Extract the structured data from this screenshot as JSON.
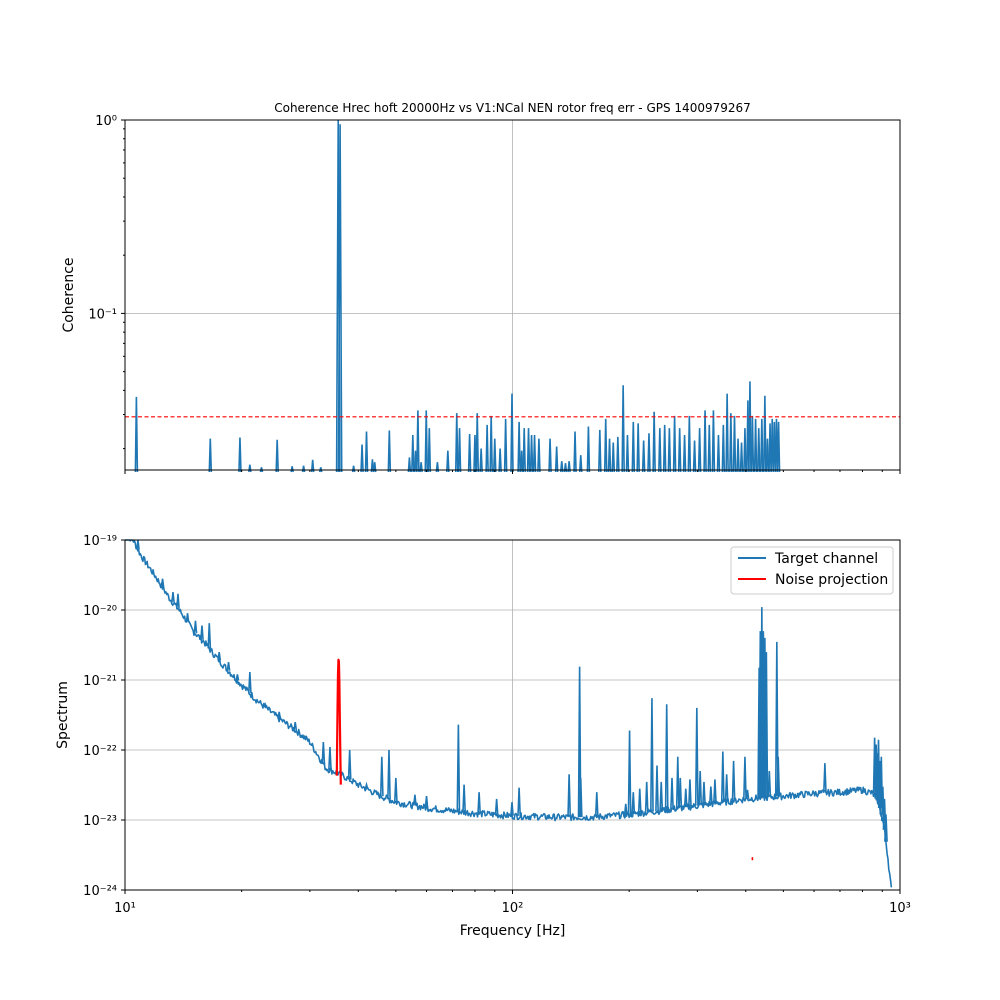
{
  "chart_data": [
    {
      "type": "line",
      "title": "Coherence Hrec hoft 20000Hz vs V1:NCal NEN rotor freq err - GPS 1400979267",
      "xlabel": "",
      "ylabel": "Coherence",
      "xscale": "log",
      "yscale": "log",
      "xlim": [
        10,
        1000
      ],
      "ylim": [
        0.0155,
        1
      ],
      "grid": true,
      "x_tick_labels": [
        "10¹",
        "10²",
        "10³"
      ],
      "y_tick_labels": [
        "10⁻¹",
        "10⁰"
      ],
      "threshold": {
        "value": 0.0292,
        "color": "#ff0000",
        "style": "dashed"
      },
      "series": [
        {
          "color": "#1f77b4",
          "floor": 0.0155,
          "peaks": [
            {
              "x": 10.7,
              "y": 0.037
            },
            {
              "x": 16.6,
              "y": 0.0225
            },
            {
              "x": 19.8,
              "y": 0.0228
            },
            {
              "x": 21.0,
              "y": 0.0165
            },
            {
              "x": 22.5,
              "y": 0.016
            },
            {
              "x": 24.7,
              "y": 0.0222
            },
            {
              "x": 27.0,
              "y": 0.0162
            },
            {
              "x": 28.9,
              "y": 0.0163
            },
            {
              "x": 30.5,
              "y": 0.0175
            },
            {
              "x": 32.0,
              "y": 0.016
            },
            {
              "x": 35.5,
              "y": 1.0
            },
            {
              "x": 35.9,
              "y": 0.95
            },
            {
              "x": 38.9,
              "y": 0.0163
            },
            {
              "x": 40.9,
              "y": 0.021
            },
            {
              "x": 42.0,
              "y": 0.0245
            },
            {
              "x": 43.5,
              "y": 0.0176
            },
            {
              "x": 44.1,
              "y": 0.017
            },
            {
              "x": 48.1,
              "y": 0.0248
            },
            {
              "x": 54.2,
              "y": 0.018
            },
            {
              "x": 55.3,
              "y": 0.0235
            },
            {
              "x": 56.2,
              "y": 0.0195
            },
            {
              "x": 57.0,
              "y": 0.0315
            },
            {
              "x": 58.1,
              "y": 0.017
            },
            {
              "x": 59.9,
              "y": 0.0315
            },
            {
              "x": 61.0,
              "y": 0.0255
            },
            {
              "x": 64.0,
              "y": 0.017
            },
            {
              "x": 68.1,
              "y": 0.0195
            },
            {
              "x": 71.8,
              "y": 0.0305
            },
            {
              "x": 73.0,
              "y": 0.0255
            },
            {
              "x": 77.5,
              "y": 0.0238
            },
            {
              "x": 80.0,
              "y": 0.0235
            },
            {
              "x": 81.1,
              "y": 0.0305
            },
            {
              "x": 83.0,
              "y": 0.02
            },
            {
              "x": 86.0,
              "y": 0.0265
            },
            {
              "x": 88.1,
              "y": 0.0295
            },
            {
              "x": 90.0,
              "y": 0.0225
            },
            {
              "x": 92.9,
              "y": 0.02
            },
            {
              "x": 96.0,
              "y": 0.0285
            },
            {
              "x": 99.7,
              "y": 0.0385
            },
            {
              "x": 104.0,
              "y": 0.0275
            },
            {
              "x": 105.6,
              "y": 0.0195
            },
            {
              "x": 107.2,
              "y": 0.0255
            },
            {
              "x": 110.0,
              "y": 0.0255
            },
            {
              "x": 112.0,
              "y": 0.0235
            },
            {
              "x": 114.0,
              "y": 0.0235
            },
            {
              "x": 117.0,
              "y": 0.0225
            },
            {
              "x": 125.0,
              "y": 0.0225
            },
            {
              "x": 130.0,
              "y": 0.0205
            },
            {
              "x": 134.0,
              "y": 0.0172
            },
            {
              "x": 137.0,
              "y": 0.0168
            },
            {
              "x": 140.0,
              "y": 0.0172
            },
            {
              "x": 145.0,
              "y": 0.0245
            },
            {
              "x": 150.0,
              "y": 0.0185
            },
            {
              "x": 157.0,
              "y": 0.026
            },
            {
              "x": 168.0,
              "y": 0.025
            },
            {
              "x": 174.0,
              "y": 0.0285
            },
            {
              "x": 178.0,
              "y": 0.0225
            },
            {
              "x": 182.0,
              "y": 0.0215
            },
            {
              "x": 187.0,
              "y": 0.023
            },
            {
              "x": 193.0,
              "y": 0.0425
            },
            {
              "x": 198.0,
              "y": 0.0235
            },
            {
              "x": 205.0,
              "y": 0.0275
            },
            {
              "x": 211.0,
              "y": 0.027
            },
            {
              "x": 218.0,
              "y": 0.022
            },
            {
              "x": 225.0,
              "y": 0.024
            },
            {
              "x": 232.0,
              "y": 0.031
            },
            {
              "x": 240.0,
              "y": 0.0255
            },
            {
              "x": 247.0,
              "y": 0.0265
            },
            {
              "x": 254.0,
              "y": 0.0255
            },
            {
              "x": 262.0,
              "y": 0.0295
            },
            {
              "x": 270.0,
              "y": 0.0255
            },
            {
              "x": 278.0,
              "y": 0.0235
            },
            {
              "x": 286.0,
              "y": 0.0295
            },
            {
              "x": 295.0,
              "y": 0.022
            },
            {
              "x": 304.0,
              "y": 0.0255
            },
            {
              "x": 314.0,
              "y": 0.0315
            },
            {
              "x": 322.0,
              "y": 0.0265
            },
            {
              "x": 330.0,
              "y": 0.0315
            },
            {
              "x": 340.0,
              "y": 0.0235
            },
            {
              "x": 350.0,
              "y": 0.0265
            },
            {
              "x": 358.0,
              "y": 0.0385
            },
            {
              "x": 366.0,
              "y": 0.0305
            },
            {
              "x": 374.0,
              "y": 0.0295
            },
            {
              "x": 382.0,
              "y": 0.0225
            },
            {
              "x": 390.0,
              "y": 0.0215
            },
            {
              "x": 398.0,
              "y": 0.0255
            },
            {
              "x": 405.0,
              "y": 0.0355
            },
            {
              "x": 410.0,
              "y": 0.0445
            },
            {
              "x": 416.0,
              "y": 0.0295
            },
            {
              "x": 424.0,
              "y": 0.0285
            },
            {
              "x": 432.0,
              "y": 0.0255
            },
            {
              "x": 440.0,
              "y": 0.0285
            },
            {
              "x": 448.0,
              "y": 0.0375
            },
            {
              "x": 455.0,
              "y": 0.0225
            },
            {
              "x": 462.0,
              "y": 0.027
            },
            {
              "x": 468.0,
              "y": 0.0285
            },
            {
              "x": 474.0,
              "y": 0.0275
            },
            {
              "x": 480.0,
              "y": 0.0285
            },
            {
              "x": 486.0,
              "y": 0.0275
            }
          ]
        }
      ]
    },
    {
      "type": "line",
      "title": "",
      "xlabel": "Frequency [Hz]",
      "ylabel": "Spectrum",
      "xscale": "log",
      "yscale": "log",
      "xlim": [
        10,
        1000
      ],
      "ylim": [
        1e-24,
        1e-19
      ],
      "grid": true,
      "legend": "top-right",
      "x_tick_labels": [
        "10¹",
        "10²",
        "10³"
      ],
      "y_tick_labels": [
        "10⁻²⁴",
        "10⁻²³",
        "10⁻²²",
        "10⁻²¹",
        "10⁻²⁰",
        "10⁻¹⁹"
      ],
      "series": [
        {
          "name": "Target channel",
          "color": "#1f77b4",
          "baseline": [
            {
              "x": 10,
              "y": 1.2e-19
            },
            {
              "x": 10.5,
              "y": 1e-19
            },
            {
              "x": 11,
              "y": 6e-20
            },
            {
              "x": 12,
              "y": 3e-20
            },
            {
              "x": 13,
              "y": 1.5e-20
            },
            {
              "x": 14,
              "y": 9e-21
            },
            {
              "x": 15,
              "y": 5e-21
            },
            {
              "x": 16,
              "y": 3.5e-21
            },
            {
              "x": 17,
              "y": 2.3e-21
            },
            {
              "x": 18,
              "y": 1.6e-21
            },
            {
              "x": 20,
              "y": 8.5e-22
            },
            {
              "x": 22,
              "y": 5e-22
            },
            {
              "x": 25,
              "y": 2.8e-22
            },
            {
              "x": 28,
              "y": 1.8e-22
            },
            {
              "x": 30,
              "y": 1.3e-22
            },
            {
              "x": 33,
              "y": 5.5e-23
            },
            {
              "x": 36,
              "y": 4.5e-23
            },
            {
              "x": 40,
              "y": 3.2e-23
            },
            {
              "x": 45,
              "y": 2.3e-23
            },
            {
              "x": 50,
              "y": 1.8e-23
            },
            {
              "x": 60,
              "y": 1.5e-23
            },
            {
              "x": 70,
              "y": 1.35e-23
            },
            {
              "x": 80,
              "y": 1.25e-23
            },
            {
              "x": 100,
              "y": 1.15e-23
            },
            {
              "x": 130,
              "y": 1.1e-23
            },
            {
              "x": 160,
              "y": 1.1e-23
            },
            {
              "x": 200,
              "y": 1.2e-23
            },
            {
              "x": 250,
              "y": 1.4e-23
            },
            {
              "x": 300,
              "y": 1.6e-23
            },
            {
              "x": 400,
              "y": 2e-23
            },
            {
              "x": 500,
              "y": 2.2e-23
            },
            {
              "x": 600,
              "y": 2.4e-23
            },
            {
              "x": 700,
              "y": 2.5e-23
            },
            {
              "x": 800,
              "y": 2.7e-23
            },
            {
              "x": 850,
              "y": 2.4e-23
            },
            {
              "x": 880,
              "y": 1.8e-23
            },
            {
              "x": 910,
              "y": 8e-24
            },
            {
              "x": 930,
              "y": 3e-24
            },
            {
              "x": 950,
              "y": 1e-24
            }
          ],
          "peaks": [
            {
              "x": 10.8,
              "y": 1.2e-19
            },
            {
              "x": 12.5,
              "y": 2.8e-20
            },
            {
              "x": 13.3,
              "y": 1.8e-20
            },
            {
              "x": 13.7,
              "y": 1.7e-20
            },
            {
              "x": 14.5,
              "y": 9e-21
            },
            {
              "x": 15.2,
              "y": 7e-21
            },
            {
              "x": 15.8,
              "y": 6e-21
            },
            {
              "x": 16.5,
              "y": 6.5e-21
            },
            {
              "x": 17.5,
              "y": 2.5e-21
            },
            {
              "x": 18.5,
              "y": 1.8e-21
            },
            {
              "x": 19.5,
              "y": 1.2e-21
            },
            {
              "x": 21.0,
              "y": 1.3e-21
            },
            {
              "x": 23.0,
              "y": 4.5e-22
            },
            {
              "x": 25.0,
              "y": 3.5e-22
            },
            {
              "x": 27.5,
              "y": 2.5e-22
            },
            {
              "x": 32.5,
              "y": 1.3e-22
            },
            {
              "x": 33.8,
              "y": 1.1e-22
            },
            {
              "x": 38.0,
              "y": 1e-22
            },
            {
              "x": 42.0,
              "y": 3.2e-23
            },
            {
              "x": 46.0,
              "y": 8e-23
            },
            {
              "x": 48.0,
              "y": 1e-22
            },
            {
              "x": 50.0,
              "y": 4e-23
            },
            {
              "x": 56.0,
              "y": 2.3e-23
            },
            {
              "x": 60.0,
              "y": 2.2e-23
            },
            {
              "x": 72.5,
              "y": 2.3e-22
            },
            {
              "x": 75.0,
              "y": 3.2e-23
            },
            {
              "x": 82.0,
              "y": 2.5e-23
            },
            {
              "x": 91.0,
              "y": 2e-23
            },
            {
              "x": 99.7,
              "y": 1.8e-23
            },
            {
              "x": 104.0,
              "y": 2.9e-23
            },
            {
              "x": 140.0,
              "y": 4.5e-23
            },
            {
              "x": 149.0,
              "y": 1.55e-21
            },
            {
              "x": 150.0,
              "y": 4e-23
            },
            {
              "x": 165.0,
              "y": 2.5e-23
            },
            {
              "x": 196.0,
              "y": 1.7e-23
            },
            {
              "x": 200.5,
              "y": 1.9e-22
            },
            {
              "x": 205.0,
              "y": 2.5e-23
            },
            {
              "x": 213.0,
              "y": 2.8e-23
            },
            {
              "x": 222.0,
              "y": 3.5e-23
            },
            {
              "x": 229.0,
              "y": 5.5e-22
            },
            {
              "x": 236.0,
              "y": 6e-23
            },
            {
              "x": 242.0,
              "y": 3.5e-23
            },
            {
              "x": 250.0,
              "y": 4.5e-22
            },
            {
              "x": 258.0,
              "y": 4e-23
            },
            {
              "x": 267.0,
              "y": 8e-23
            },
            {
              "x": 271.0,
              "y": 4e-23
            },
            {
              "x": 280.0,
              "y": 2.8e-23
            },
            {
              "x": 287.0,
              "y": 3.8e-23
            },
            {
              "x": 299.0,
              "y": 4e-22
            },
            {
              "x": 305.0,
              "y": 5e-23
            },
            {
              "x": 312.0,
              "y": 3.5e-23
            },
            {
              "x": 325.0,
              "y": 3e-23
            },
            {
              "x": 333.0,
              "y": 3.8e-23
            },
            {
              "x": 349.0,
              "y": 9.5e-23
            },
            {
              "x": 357.0,
              "y": 4.5e-23
            },
            {
              "x": 372.0,
              "y": 7e-23
            },
            {
              "x": 398.0,
              "y": 8e-23
            },
            {
              "x": 404.0,
              "y": 2.7e-23
            },
            {
              "x": 433.0,
              "y": 1.5e-21
            },
            {
              "x": 436.0,
              "y": 5e-21
            },
            {
              "x": 440.0,
              "y": 1.1e-20
            },
            {
              "x": 444.0,
              "y": 5e-21
            },
            {
              "x": 448.0,
              "y": 4e-21
            },
            {
              "x": 452.0,
              "y": 2.5e-21
            },
            {
              "x": 460.0,
              "y": 5e-23
            },
            {
              "x": 481.0,
              "y": 3.5e-21
            },
            {
              "x": 485.0,
              "y": 8e-23
            },
            {
              "x": 640.0,
              "y": 6.5e-23
            },
            {
              "x": 860.0,
              "y": 1.5e-22
            },
            {
              "x": 868.0,
              "y": 1.2e-22
            },
            {
              "x": 874.0,
              "y": 9e-23
            },
            {
              "x": 880.0,
              "y": 1.4e-22
            },
            {
              "x": 887.0,
              "y": 7e-23
            },
            {
              "x": 895.0,
              "y": 8e-23
            },
            {
              "x": 903.0,
              "y": 3e-23
            },
            {
              "x": 912.0,
              "y": 2e-23
            },
            {
              "x": 920.0,
              "y": 1.2e-23
            }
          ]
        },
        {
          "name": "Noise projection",
          "color": "#ff0000",
          "points": [
            {
              "x": 35.2,
              "y": 4.3e-23
            },
            {
              "x": 35.35,
              "y": 3.6e-22
            },
            {
              "x": 35.45,
              "y": 1.2e-21
            },
            {
              "x": 35.55,
              "y": 1.95e-21
            },
            {
              "x": 35.65,
              "y": 1.85e-21
            },
            {
              "x": 35.75,
              "y": 9e-22
            },
            {
              "x": 35.85,
              "y": 2.6e-22
            },
            {
              "x": 35.95,
              "y": 9e-23
            },
            {
              "x": 36.05,
              "y": 3.2e-23
            }
          ],
          "isolated": [
            {
              "x": 416.0,
              "y": 2.8e-24
            }
          ]
        }
      ]
    }
  ]
}
